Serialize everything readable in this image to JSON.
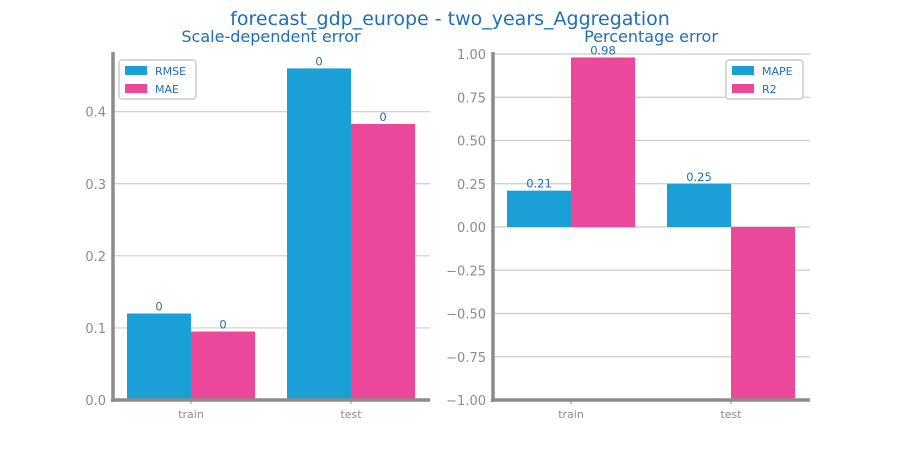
{
  "title": "forecast_gdp_europe - two_years_Aggregation",
  "colors": {
    "series1": "#1a9fd6",
    "series2": "#ec4899",
    "title": "#1f6fb5",
    "axis": "#8c8c8c",
    "grid": "#cccccc"
  },
  "chart_data": [
    {
      "type": "bar",
      "title": "Scale-dependent error",
      "categories": [
        "train",
        "test"
      ],
      "series": [
        {
          "name": "RMSE",
          "values": [
            0.12,
            0.46
          ],
          "labels": [
            "0",
            "0"
          ]
        },
        {
          "name": "MAE",
          "values": [
            0.095,
            0.383
          ],
          "labels": [
            "0",
            "0"
          ]
        }
      ],
      "ylim": [
        0,
        0.48
      ],
      "yticks": [
        "0.0",
        "0.1",
        "0.2",
        "0.3",
        "0.4"
      ],
      "grid": true,
      "legend": "top-left"
    },
    {
      "type": "bar",
      "title": "Percentage error",
      "categories": [
        "train",
        "test"
      ],
      "series": [
        {
          "name": "MAPE",
          "values": [
            0.21,
            0.25
          ],
          "labels": [
            "0.21",
            "0.25"
          ]
        },
        {
          "name": "R2",
          "values": [
            0.98,
            -1.0
          ],
          "labels": [
            "0.98",
            ""
          ]
        }
      ],
      "ylim": [
        -1.0,
        1.0
      ],
      "yticks": [
        "−1.00",
        "−0.75",
        "−0.50",
        "−0.25",
        "0.00",
        "0.25",
        "0.50",
        "0.75",
        "1.00"
      ],
      "grid": true,
      "legend": "top-right"
    }
  ]
}
